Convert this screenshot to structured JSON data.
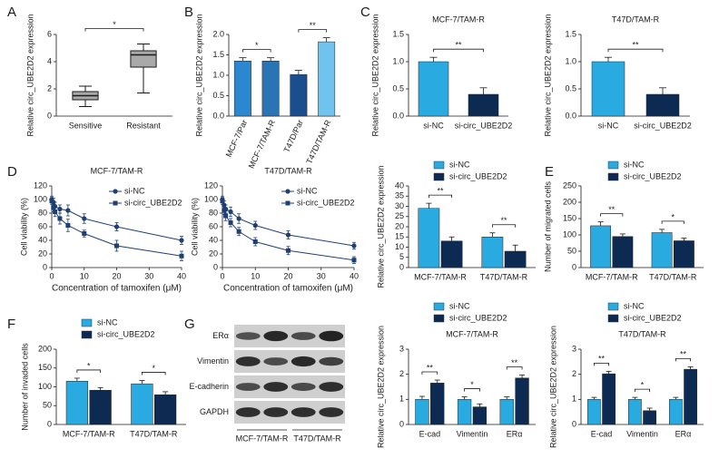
{
  "chart_data": [
    {
      "type": "box",
      "panel": "A",
      "ylabel": "Relative circ_UBE2D2 expression",
      "categories": [
        "Sensitive",
        "Resistant"
      ],
      "boxes": [
        {
          "min": 0.7,
          "q1": 1.2,
          "median": 1.5,
          "q3": 1.8,
          "max": 2.2
        },
        {
          "min": 1.7,
          "q1": 3.6,
          "median": 4.5,
          "q3": 4.8,
          "max": 5.3
        }
      ],
      "color": "#1a1a1a",
      "fill": "#a9a9a9",
      "ylim": [
        0,
        6
      ],
      "yticks": [
        0,
        2,
        4,
        6
      ],
      "significance": [
        "*"
      ]
    },
    {
      "type": "bar",
      "panel": "B",
      "ylabel": "Relative circ_UBE2D2 expression",
      "categories": [
        "MCF-7/Par",
        "MCF-7/TAM-R",
        "T47D/Par",
        "T47D/TAM-R"
      ],
      "values": [
        1.35,
        1.35,
        1.02,
        1.82
      ],
      "errors": [
        0.08,
        0.08,
        0.1,
        0.1
      ],
      "colors": [
        "#2b87cf",
        "#2a73b5",
        "#1b4e8c",
        "#6fc3ee"
      ],
      "ylim": [
        0,
        2
      ],
      "yticks": [
        {
          "value": 0,
          "label": "0.0"
        },
        0.5,
        {
          "value": 1,
          "label": "1.0"
        },
        1.5,
        {
          "value": 2,
          "label": "2.0"
        }
      ],
      "significance": [
        "*",
        "**"
      ]
    },
    {
      "type": "bar",
      "panel": "C",
      "title": "MCF-7/TAM-R",
      "ylabel": "Relative circ_UBE2D2 expression",
      "categories": [
        "si-NC",
        "si-circ_UBE2D2"
      ],
      "values": [
        1.0,
        0.4
      ],
      "errors": [
        0.08,
        0.12
      ],
      "colors": [
        "#29abe2",
        "#0d2b52"
      ],
      "ylim": [
        0,
        1.5
      ],
      "yticks": [
        {
          "value": 0,
          "label": "0.0"
        },
        0.5,
        {
          "value": 1,
          "label": "1.0"
        },
        1.5
      ],
      "significance": [
        "**"
      ]
    },
    {
      "type": "bar",
      "title": "T47D/TAM-R",
      "ylabel": "Relative circ_UBE2D2 expression",
      "categories": [
        "si-NC",
        "si-circ_UBE2D2"
      ],
      "values": [
        1.0,
        0.4
      ],
      "errors": [
        0.08,
        0.12
      ],
      "colors": [
        "#29abe2",
        "#0d2b52"
      ],
      "ylim": [
        0,
        1.5
      ],
      "yticks": [
        {
          "value": 0,
          "label": "0.0"
        },
        0.5,
        {
          "value": 1,
          "label": "1.0"
        },
        1.5
      ],
      "significance": [
        "**"
      ]
    },
    {
      "type": "line",
      "panel": "D",
      "title": "MCF-7/TAM-R",
      "ylabel": "Cell viability (%)",
      "xlabel": "Concentration of tamoxifen (μM)",
      "x": [
        0,
        0.5,
        1,
        2.5,
        5,
        10,
        20,
        40
      ],
      "series": [
        {
          "name": "si-NC",
          "color": "#1f3f73",
          "marker": "circle",
          "values": [
            100,
            96,
            90,
            86,
            84,
            72,
            60,
            40
          ],
          "errors": [
            5,
            6,
            6,
            6,
            8,
            7,
            6,
            6
          ]
        },
        {
          "name": "si-circ_UBE2D2",
          "color": "#1f3f73",
          "marker": "square",
          "values": [
            98,
            88,
            82,
            72,
            62,
            50,
            32,
            17
          ],
          "errors": [
            5,
            6,
            7,
            8,
            9,
            5,
            8,
            7
          ]
        }
      ],
      "xlim": [
        0,
        40
      ],
      "xticks": [
        0,
        10,
        20,
        30,
        40
      ],
      "ylim": [
        0,
        120
      ],
      "yticks": [
        0,
        20,
        40,
        60,
        80,
        100,
        120
      ],
      "legend": "upper right"
    },
    {
      "type": "line",
      "title": "T47D/TAM-R",
      "ylabel": "Cell viability (%)",
      "xlabel": "Concentration of tamoxifen (μM)",
      "x": [
        0,
        0.5,
        1,
        2.5,
        5,
        10,
        20,
        40
      ],
      "series": [
        {
          "name": "si-NC",
          "color": "#1f3f73",
          "marker": "circle",
          "values": [
            100,
            92,
            86,
            82,
            72,
            62,
            48,
            32
          ],
          "errors": [
            5,
            6,
            6,
            7,
            7,
            6,
            6,
            5
          ]
        },
        {
          "name": "si-circ_UBE2D2",
          "color": "#1f3f73",
          "marker": "square",
          "values": [
            98,
            84,
            76,
            66,
            53,
            38,
            25,
            11
          ],
          "errors": [
            5,
            6,
            7,
            6,
            6,
            6,
            6,
            5
          ]
        }
      ],
      "xlim": [
        0,
        40
      ],
      "xticks": [
        0,
        10,
        20,
        30,
        40
      ],
      "ylim": [
        0,
        120
      ],
      "yticks": [
        0,
        20,
        40,
        60,
        80,
        100,
        120
      ],
      "legend": "upper right"
    },
    {
      "type": "bar",
      "ylabel": "Relative circ_UBE2D2 expression",
      "categories": [
        "MCF-7/TAM-R",
        "T47D/TAM-R"
      ],
      "series": [
        {
          "name": "si-NC",
          "color": "#29abe2",
          "values": [
            29,
            15
          ],
          "errors": [
            2.5,
            2
          ]
        },
        {
          "name": "si-circ_UBE2D2",
          "color": "#0d2b52",
          "values": [
            13,
            8
          ],
          "errors": [
            2,
            3
          ]
        }
      ],
      "ylim": [
        0,
        40
      ],
      "yticks": [
        0,
        5,
        10,
        15,
        20,
        25,
        30,
        35,
        40
      ],
      "significance": [
        "**",
        "**"
      ],
      "legend": "top"
    },
    {
      "type": "bar",
      "panel": "E",
      "ylabel": "Number of migrated cells",
      "categories": [
        "MCF-7/TAM-R",
        "T47D/TAM-R"
      ],
      "series": [
        {
          "name": "si-NC",
          "color": "#29abe2",
          "values": [
            128,
            107
          ],
          "errors": [
            12,
            10
          ]
        },
        {
          "name": "si-circ_UBE2D2",
          "color": "#0d2b52",
          "values": [
            95,
            82
          ],
          "errors": [
            8,
            8
          ]
        }
      ],
      "ylim": [
        0,
        250
      ],
      "yticks": [
        0,
        50,
        100,
        150,
        200,
        250
      ],
      "significance": [
        "**",
        "*"
      ],
      "legend": "top"
    },
    {
      "type": "bar",
      "panel": "F",
      "ylabel": "Number of invaded cells",
      "categories": [
        "MCF-7/TAM-R",
        "T47D/TAM-R"
      ],
      "series": [
        {
          "name": "si-NC",
          "color": "#29abe2",
          "values": [
            115,
            108
          ],
          "errors": [
            8,
            9
          ]
        },
        {
          "name": "si-circ_UBE2D2",
          "color": "#0d2b52",
          "values": [
            91,
            79
          ],
          "errors": [
            7,
            8
          ]
        }
      ],
      "ylim": [
        0,
        200
      ],
      "yticks": [
        0,
        50,
        100,
        150,
        200
      ],
      "significance": [
        "*",
        "*"
      ],
      "legend": "top"
    },
    {
      "type": "blot",
      "panel": "G",
      "rows": [
        "ERα",
        "Vimentin",
        "E-cadherin",
        "GAPDH"
      ],
      "columns": [
        "MCF-7/TAM-R",
        "T47D/TAM-R"
      ]
    },
    {
      "type": "bar",
      "title": "MCF-7/TAM-R",
      "ylabel": "Relative circ_UBE2D2 expression",
      "categories": [
        "E-cad",
        "Vimentin",
        "ERα"
      ],
      "series": [
        {
          "name": "si-NC",
          "color": "#29abe2",
          "values": [
            1.0,
            1.0,
            1.0
          ],
          "errors": [
            0.12,
            0.1,
            0.1
          ]
        },
        {
          "name": "si-circ_UBE2D2",
          "color": "#0d2b52",
          "values": [
            1.65,
            0.7,
            1.85
          ],
          "errors": [
            0.12,
            0.12,
            0.12
          ]
        }
      ],
      "ylim": [
        0,
        3
      ],
      "yticks": [
        0,
        1,
        2,
        3
      ],
      "significance": [
        "**",
        "*",
        "**"
      ],
      "legend": "top"
    },
    {
      "type": "bar",
      "title": "T47D/TAM-R",
      "ylabel": "Relative circ_UBE2D2 expression",
      "categories": [
        "E-cad",
        "Vimentin",
        "ERα"
      ],
      "series": [
        {
          "name": "si-NC",
          "color": "#29abe2",
          "values": [
            1.0,
            1.0,
            1.0
          ],
          "errors": [
            0.08,
            0.08,
            0.08
          ]
        },
        {
          "name": "si-circ_UBE2D2",
          "color": "#0d2b52",
          "values": [
            2.02,
            0.55,
            2.2
          ],
          "errors": [
            0.1,
            0.1,
            0.1
          ]
        }
      ],
      "ylim": [
        0,
        3
      ],
      "yticks": [
        0,
        1,
        2,
        3
      ],
      "significance": [
        "**",
        "*",
        "**"
      ],
      "legend": "top"
    }
  ]
}
